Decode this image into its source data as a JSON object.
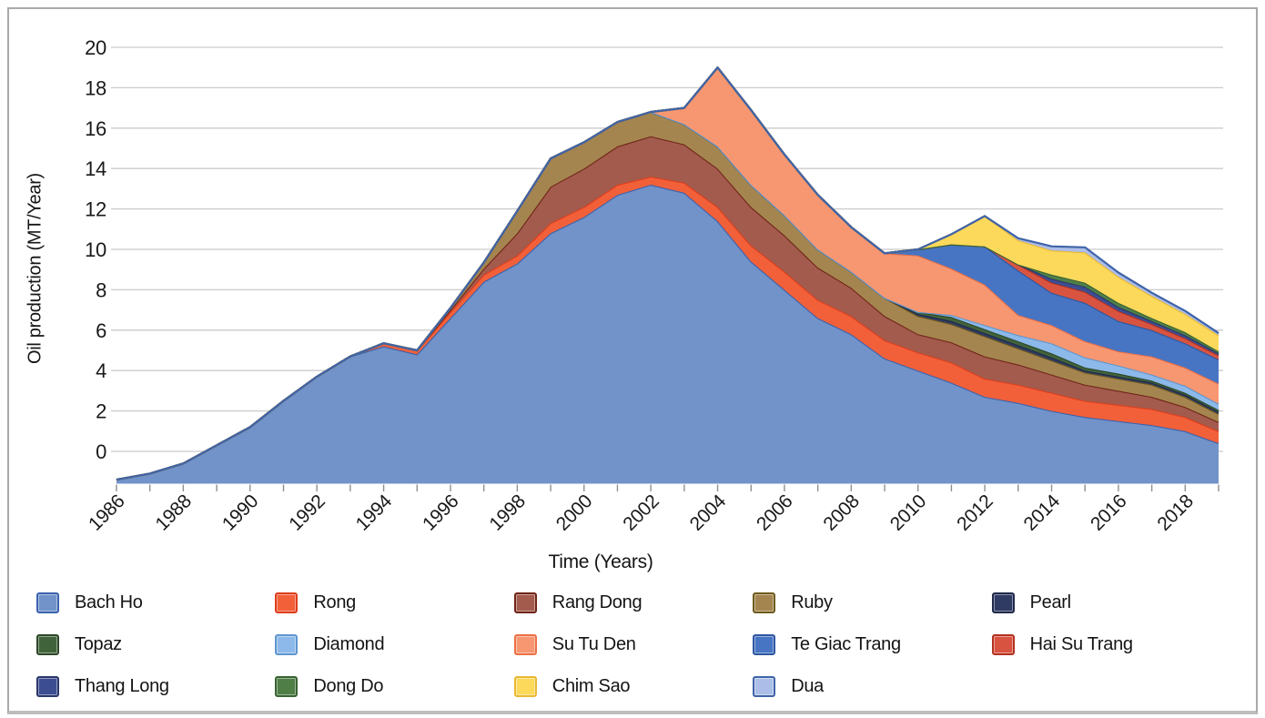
{
  "figure": {
    "xlabel": "Time (Years)",
    "ylabel": "Oil production (MT/Year)"
  },
  "chart_data": {
    "type": "area",
    "stacked": true,
    "title": "",
    "xlabel": "Time (Years)",
    "ylabel": "Oil production (MT/Year)",
    "units": "MT/Year",
    "grid": "horizontal",
    "legend_position": "bottom",
    "years": [
      1986,
      1987,
      1988,
      1989,
      1990,
      1991,
      1992,
      1993,
      1994,
      1995,
      1996,
      1997,
      1998,
      1999,
      2000,
      2001,
      2002,
      2003,
      2004,
      2005,
      2006,
      2007,
      2008,
      2009,
      2010,
      2011,
      2012,
      2013,
      2014,
      2015,
      2016,
      2017,
      2018,
      2019
    ],
    "x_tick_labels": [
      "1986",
      "1988",
      "1990",
      "1992",
      "1994",
      "1996",
      "1998",
      "2000",
      "2002",
      "2004",
      "2006",
      "2008",
      "2010",
      "2012",
      "2014",
      "2016",
      "2018"
    ],
    "y_ticks": [
      0,
      2,
      4,
      6,
      8,
      10,
      12,
      14,
      16,
      18,
      20
    ],
    "ylim_drawn": [
      -1.6,
      20
    ],
    "baseline_note": "As drawn in the source figure, the stack floor sits about 1.6 units below the 0 gridline; series values below are band thicknesses (MT/Year) read from the chart. Total stack peaks near 19 on the labeled axis in 2004 and has a secondary peak near 11.5 in 2012.",
    "colors": {
      "gridline": "#cbcbcb",
      "tick": "#8f8f8f",
      "axis_text": "#191919",
      "frame": "#a9a9a9"
    },
    "series": [
      {
        "name": "Bach Ho",
        "fill": "#7193C9",
        "stroke": "#3A62AE",
        "values": [
          0.2,
          0.5,
          1.0,
          1.9,
          2.8,
          4.1,
          5.3,
          6.3,
          6.8,
          6.4,
          8.2,
          10.0,
          10.9,
          12.4,
          13.2,
          14.3,
          14.8,
          14.4,
          13.0,
          11.0,
          9.6,
          8.2,
          7.4,
          6.2,
          5.6,
          5.0,
          4.3,
          4.0,
          3.6,
          3.3,
          3.1,
          2.9,
          2.6,
          2.0
        ]
      },
      {
        "name": "Rong",
        "fill": "#F2603A",
        "stroke": "#DD3E1C",
        "values": [
          0,
          0,
          0,
          0,
          0,
          0,
          0,
          0,
          0.15,
          0.2,
          0.3,
          0.35,
          0.4,
          0.5,
          0.5,
          0.5,
          0.4,
          0.5,
          0.7,
          0.8,
          0.9,
          0.9,
          0.9,
          0.9,
          0.9,
          1.0,
          0.9,
          0.9,
          0.9,
          0.8,
          0.8,
          0.8,
          0.7,
          0.6
        ]
      },
      {
        "name": "Rang Dong",
        "fill": "#A35B4D",
        "stroke": "#6F2518",
        "values": [
          0,
          0,
          0,
          0,
          0,
          0,
          0,
          0,
          0,
          0,
          0.1,
          0.3,
          1.1,
          1.8,
          1.9,
          1.9,
          2.0,
          1.9,
          1.9,
          1.9,
          1.8,
          1.6,
          1.4,
          1.2,
          0.9,
          1.0,
          1.1,
          1.0,
          0.9,
          0.8,
          0.7,
          0.6,
          0.5,
          0.45
        ]
      },
      {
        "name": "Ruby",
        "fill": "#A5854F",
        "stroke": "#6E5B1C",
        "values": [
          0,
          0,
          0,
          0,
          0,
          0,
          0,
          0,
          0,
          0,
          0.1,
          0.3,
          1.1,
          1.4,
          1.3,
          1.2,
          1.2,
          1.0,
          1.1,
          1.1,
          1.0,
          0.9,
          0.8,
          0.9,
          0.9,
          0.9,
          1.0,
          0.8,
          0.7,
          0.6,
          0.6,
          0.6,
          0.5,
          0.4
        ]
      },
      {
        "name": "Pearl",
        "fill": "#2F3B63",
        "stroke": "#20294A",
        "values": [
          0,
          0,
          0,
          0,
          0,
          0,
          0,
          0,
          0,
          0,
          0,
          0,
          0,
          0,
          0,
          0,
          0,
          0,
          0,
          0,
          0,
          0,
          0,
          0,
          0.1,
          0.15,
          0.15,
          0.15,
          0.15,
          0.1,
          0.1,
          0.1,
          0.1,
          0.1
        ]
      },
      {
        "name": "Topaz",
        "fill": "#41633B",
        "stroke": "#2C4727",
        "values": [
          0,
          0,
          0,
          0,
          0,
          0,
          0,
          0,
          0,
          0,
          0,
          0,
          0,
          0,
          0,
          0,
          0,
          0,
          0,
          0,
          0,
          0,
          0,
          0,
          0.1,
          0.2,
          0.2,
          0.2,
          0.2,
          0.15,
          0.15,
          0.1,
          0.1,
          0.1
        ]
      },
      {
        "name": "Diamond",
        "fill": "#8CB9E9",
        "stroke": "#5E95CF",
        "values": [
          0,
          0,
          0,
          0,
          0,
          0,
          0,
          0,
          0,
          0,
          0,
          0,
          0,
          0,
          0,
          0,
          0,
          0,
          0,
          0,
          0,
          0,
          0,
          0,
          0,
          0.1,
          0.2,
          0.3,
          0.5,
          0.5,
          0.4,
          0.3,
          0.35,
          0.3
        ]
      },
      {
        "name": "Su Tu Den",
        "fill": "#F79771",
        "stroke": "#ED6F45",
        "values": [
          0,
          0,
          0,
          0,
          0,
          0,
          0,
          0,
          0,
          0,
          0,
          0,
          0,
          0,
          0,
          0,
          0,
          0.8,
          3.9,
          3.7,
          3.0,
          2.7,
          2.2,
          2.2,
          2.8,
          2.3,
          2.0,
          1.0,
          0.9,
          0.8,
          0.7,
          0.9,
          0.9,
          1.0
        ]
      },
      {
        "name": "Te Giac Trang",
        "fill": "#4775C3",
        "stroke": "#2E57A0",
        "values": [
          0,
          0,
          0,
          0,
          0,
          0,
          0,
          0,
          0,
          0,
          0,
          0,
          0,
          0,
          0,
          0,
          0,
          0,
          0,
          0,
          0,
          0,
          0,
          0,
          0.3,
          1.2,
          1.9,
          2.2,
          1.6,
          1.9,
          1.5,
          1.3,
          1.2,
          1.2
        ]
      },
      {
        "name": "Hai Su Trang",
        "fill": "#D85441",
        "stroke": "#B2311F",
        "values": [
          0,
          0,
          0,
          0,
          0,
          0,
          0,
          0,
          0,
          0,
          0,
          0,
          0,
          0,
          0,
          0,
          0,
          0,
          0,
          0,
          0,
          0,
          0,
          0,
          0,
          0,
          0,
          0.3,
          0.5,
          0.55,
          0.5,
          0.3,
          0.25,
          0.2
        ]
      },
      {
        "name": "Thang Long",
        "fill": "#3D4D91",
        "stroke": "#2A3768",
        "values": [
          0,
          0,
          0,
          0,
          0,
          0,
          0,
          0,
          0,
          0,
          0,
          0,
          0,
          0,
          0,
          0,
          0,
          0,
          0,
          0,
          0,
          0,
          0,
          0,
          0,
          0,
          0,
          0,
          0.2,
          0.25,
          0.2,
          0.15,
          0.15,
          0.1
        ]
      },
      {
        "name": "Dong Do",
        "fill": "#4F7F47",
        "stroke": "#386232",
        "values": [
          0,
          0,
          0,
          0,
          0,
          0,
          0,
          0,
          0,
          0,
          0,
          0,
          0,
          0,
          0,
          0,
          0,
          0,
          0,
          0,
          0,
          0,
          0,
          0,
          0,
          0,
          0,
          0,
          0.2,
          0.2,
          0.2,
          0.15,
          0.15,
          0.1
        ]
      },
      {
        "name": "Chim Sao",
        "fill": "#FCD95B",
        "stroke": "#E9B833",
        "values": [
          0,
          0,
          0,
          0,
          0,
          0,
          0,
          0,
          0,
          0,
          0,
          0,
          0,
          0,
          0,
          0,
          0,
          0,
          0,
          0,
          0,
          0,
          0,
          0,
          0,
          0.5,
          1.5,
          1.2,
          1.2,
          1.5,
          1.3,
          1.1,
          0.9,
          0.8
        ]
      },
      {
        "name": "Dua",
        "fill": "#ACBEE8",
        "stroke": "#3F63A8",
        "values": [
          0,
          0,
          0,
          0,
          0,
          0,
          0,
          0,
          0,
          0,
          0,
          0,
          0,
          0,
          0,
          0,
          0,
          0,
          0,
          0,
          0,
          0,
          0,
          0,
          0,
          0,
          0,
          0.1,
          0.2,
          0.25,
          0.2,
          0.15,
          0.15,
          0.1
        ]
      }
    ]
  }
}
